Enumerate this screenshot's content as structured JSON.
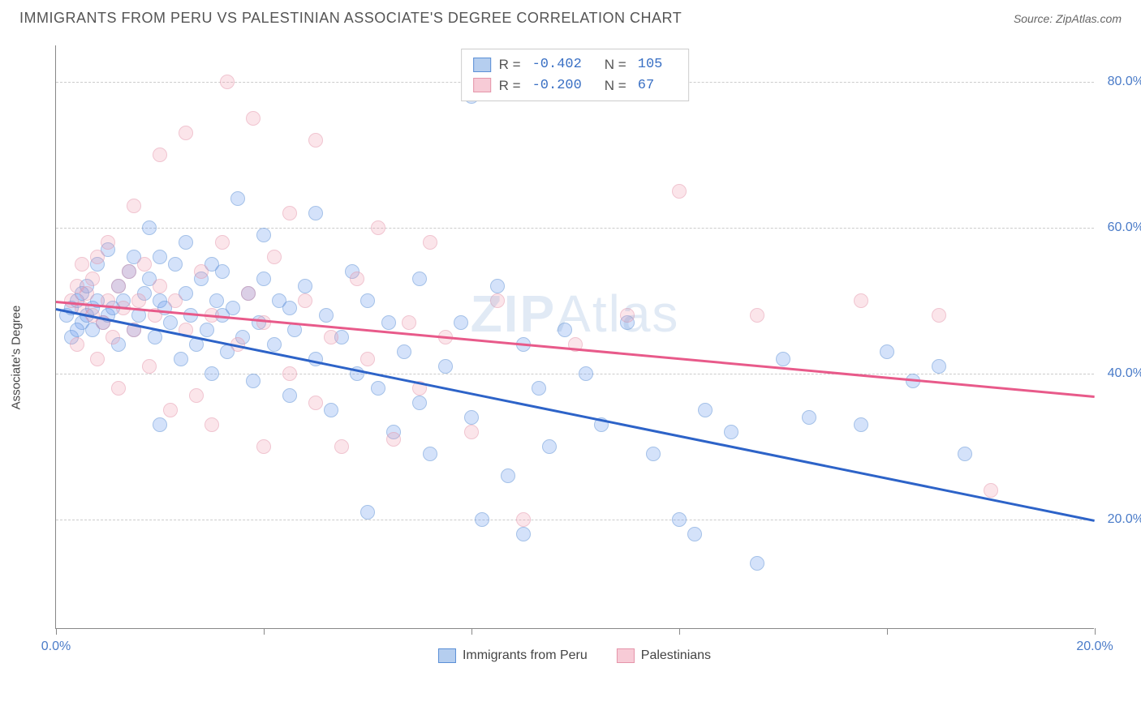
{
  "header": {
    "title": "IMMIGRANTS FROM PERU VS PALESTINIAN ASSOCIATE'S DEGREE CORRELATION CHART",
    "source_label": "Source: ",
    "source_value": "ZipAtlas.com"
  },
  "chart": {
    "type": "scatter",
    "xlim": [
      0,
      20
    ],
    "ylim": [
      5,
      85
    ],
    "x_ticks": [
      0,
      4,
      8,
      12,
      16,
      20
    ],
    "x_tick_labels": {
      "0": "0.0%",
      "20": "20.0%"
    },
    "y_gridlines": [
      20,
      40,
      60,
      80
    ],
    "y_tick_labels": {
      "20": "20.0%",
      "40": "40.0%",
      "60": "60.0%",
      "80": "80.0%"
    },
    "y_axis_label": "Associate's Degree",
    "background_color": "#ffffff",
    "grid_color": "#cccccc",
    "axis_color": "#888888",
    "tick_label_color": "#4a7bc8",
    "watermark": "ZIPAtlas",
    "series": [
      {
        "name": "Immigrants from Peru",
        "color_fill": "rgba(100,149,237,0.5)",
        "color_stroke": "#5b8fd6",
        "R": "-0.402",
        "N": "105",
        "trend": {
          "x1": 0,
          "y1": 49,
          "x2": 20,
          "y2": 20,
          "color": "#2d63c8"
        },
        "points": [
          [
            0.2,
            48
          ],
          [
            0.3,
            49
          ],
          [
            0.4,
            50
          ],
          [
            0.5,
            47
          ],
          [
            0.5,
            51
          ],
          [
            0.6,
            48
          ],
          [
            0.6,
            52
          ],
          [
            0.7,
            49
          ],
          [
            0.7,
            46
          ],
          [
            0.8,
            50
          ],
          [
            0.8,
            55
          ],
          [
            0.9,
            47
          ],
          [
            1.0,
            48
          ],
          [
            1.0,
            57
          ],
          [
            1.1,
            49
          ],
          [
            1.2,
            52
          ],
          [
            1.2,
            44
          ],
          [
            1.3,
            50
          ],
          [
            1.4,
            54
          ],
          [
            1.5,
            46
          ],
          [
            1.5,
            56
          ],
          [
            1.6,
            48
          ],
          [
            1.7,
            51
          ],
          [
            1.8,
            53
          ],
          [
            1.8,
            60
          ],
          [
            1.9,
            45
          ],
          [
            2.0,
            50
          ],
          [
            2.0,
            56
          ],
          [
            2.1,
            49
          ],
          [
            2.2,
            47
          ],
          [
            2.3,
            55
          ],
          [
            2.4,
            42
          ],
          [
            2.5,
            51
          ],
          [
            2.5,
            58
          ],
          [
            2.6,
            48
          ],
          [
            2.7,
            44
          ],
          [
            2.8,
            53
          ],
          [
            2.9,
            46
          ],
          [
            3.0,
            55
          ],
          [
            3.0,
            40
          ],
          [
            3.1,
            50
          ],
          [
            3.2,
            54
          ],
          [
            3.3,
            43
          ],
          [
            3.4,
            49
          ],
          [
            3.5,
            64
          ],
          [
            3.6,
            45
          ],
          [
            3.7,
            51
          ],
          [
            3.8,
            39
          ],
          [
            3.9,
            47
          ],
          [
            4.0,
            53
          ],
          [
            4.0,
            59
          ],
          [
            4.2,
            44
          ],
          [
            4.3,
            50
          ],
          [
            4.5,
            37
          ],
          [
            4.6,
            46
          ],
          [
            4.8,
            52
          ],
          [
            5.0,
            42
          ],
          [
            5.0,
            62
          ],
          [
            5.2,
            48
          ],
          [
            5.3,
            35
          ],
          [
            5.5,
            45
          ],
          [
            5.7,
            54
          ],
          [
            5.8,
            40
          ],
          [
            6.0,
            50
          ],
          [
            6.0,
            21
          ],
          [
            6.2,
            38
          ],
          [
            6.4,
            47
          ],
          [
            6.5,
            32
          ],
          [
            6.7,
            43
          ],
          [
            7.0,
            53
          ],
          [
            7.0,
            36
          ],
          [
            7.2,
            29
          ],
          [
            7.5,
            41
          ],
          [
            7.8,
            47
          ],
          [
            8.0,
            78
          ],
          [
            8.0,
            34
          ],
          [
            8.2,
            20
          ],
          [
            8.5,
            52
          ],
          [
            8.7,
            26
          ],
          [
            9.0,
            44
          ],
          [
            9.0,
            18
          ],
          [
            9.3,
            38
          ],
          [
            9.5,
            30
          ],
          [
            9.8,
            46
          ],
          [
            10.2,
            40
          ],
          [
            10.5,
            33
          ],
          [
            11.0,
            47
          ],
          [
            11.5,
            29
          ],
          [
            12.0,
            20
          ],
          [
            12.3,
            18
          ],
          [
            12.5,
            35
          ],
          [
            13.0,
            32
          ],
          [
            13.5,
            14
          ],
          [
            14.0,
            42
          ],
          [
            14.5,
            34
          ],
          [
            15.5,
            33
          ],
          [
            16.0,
            43
          ],
          [
            16.5,
            39
          ],
          [
            17.0,
            41
          ],
          [
            17.5,
            29
          ],
          [
            0.3,
            45
          ],
          [
            0.4,
            46
          ],
          [
            2.0,
            33
          ],
          [
            3.2,
            48
          ],
          [
            4.5,
            49
          ]
        ]
      },
      {
        "name": "Palestinians",
        "color_fill": "rgba(240,160,180,0.55)",
        "color_stroke": "#e595aa",
        "R": "-0.200",
        "N": "67",
        "trend": {
          "x1": 0,
          "y1": 50,
          "x2": 20,
          "y2": 37,
          "color": "#e85a8a"
        },
        "points": [
          [
            0.3,
            50
          ],
          [
            0.4,
            52
          ],
          [
            0.5,
            49
          ],
          [
            0.5,
            55
          ],
          [
            0.6,
            51
          ],
          [
            0.7,
            48
          ],
          [
            0.7,
            53
          ],
          [
            0.8,
            56
          ],
          [
            0.9,
            47
          ],
          [
            1.0,
            50
          ],
          [
            1.0,
            58
          ],
          [
            1.1,
            45
          ],
          [
            1.2,
            52
          ],
          [
            1.3,
            49
          ],
          [
            1.4,
            54
          ],
          [
            1.5,
            46
          ],
          [
            1.5,
            63
          ],
          [
            1.6,
            50
          ],
          [
            1.7,
            55
          ],
          [
            1.8,
            41
          ],
          [
            1.9,
            48
          ],
          [
            2.0,
            52
          ],
          [
            2.0,
            70
          ],
          [
            2.2,
            35
          ],
          [
            2.3,
            50
          ],
          [
            2.5,
            46
          ],
          [
            2.5,
            73
          ],
          [
            2.7,
            37
          ],
          [
            2.8,
            54
          ],
          [
            3.0,
            48
          ],
          [
            3.0,
            33
          ],
          [
            3.2,
            58
          ],
          [
            3.3,
            80
          ],
          [
            3.5,
            44
          ],
          [
            3.7,
            51
          ],
          [
            3.8,
            75
          ],
          [
            4.0,
            30
          ],
          [
            4.0,
            47
          ],
          [
            4.2,
            56
          ],
          [
            4.5,
            40
          ],
          [
            4.5,
            62
          ],
          [
            4.8,
            50
          ],
          [
            5.0,
            72
          ],
          [
            5.0,
            36
          ],
          [
            5.3,
            45
          ],
          [
            5.5,
            30
          ],
          [
            5.8,
            53
          ],
          [
            6.0,
            42
          ],
          [
            6.2,
            60
          ],
          [
            6.5,
            31
          ],
          [
            6.8,
            47
          ],
          [
            7.0,
            38
          ],
          [
            7.2,
            58
          ],
          [
            7.5,
            45
          ],
          [
            8.0,
            32
          ],
          [
            8.5,
            50
          ],
          [
            9.0,
            20
          ],
          [
            10.0,
            44
          ],
          [
            11.0,
            48
          ],
          [
            12.0,
            65
          ],
          [
            13.5,
            48
          ],
          [
            15.5,
            50
          ],
          [
            17.0,
            48
          ],
          [
            18.0,
            24
          ],
          [
            0.4,
            44
          ],
          [
            0.8,
            42
          ],
          [
            1.2,
            38
          ]
        ]
      }
    ],
    "legend_bottom": [
      {
        "swatch": "blue",
        "label": "Immigrants from Peru"
      },
      {
        "swatch": "pink",
        "label": "Palestinians"
      }
    ]
  }
}
